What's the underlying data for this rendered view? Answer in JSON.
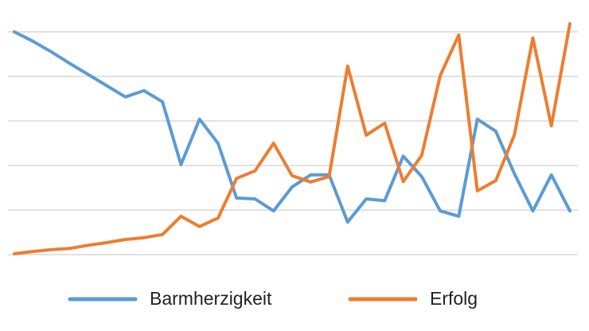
{
  "chart_data": {
    "type": "line",
    "categories": [
      null,
      null,
      null,
      null,
      null,
      null,
      null,
      null,
      null,
      null,
      null,
      null,
      null,
      null,
      null,
      null,
      null,
      null,
      null,
      null,
      null,
      null,
      null,
      null,
      null,
      null,
      null,
      null,
      null,
      null,
      null
    ],
    "series": [
      {
        "name": "Barmherzigkeit",
        "color": "#5b9bd5",
        "values": [
          5.0,
          4.79,
          4.55,
          4.29,
          4.04,
          3.79,
          3.54,
          3.68,
          3.43,
          2.02,
          3.04,
          2.5,
          1.27,
          1.25,
          0.98,
          1.52,
          1.79,
          1.79,
          0.73,
          1.25,
          1.21,
          2.21,
          1.75,
          0.98,
          0.86,
          3.04,
          2.77,
          1.82,
          0.98,
          1.79,
          0.98
        ]
      },
      {
        "name": "Erfolg",
        "color": "#ed7d31",
        "values": [
          0.02,
          0.07,
          0.11,
          0.14,
          0.21,
          0.27,
          0.34,
          0.38,
          0.45,
          0.86,
          0.63,
          0.82,
          1.71,
          1.88,
          2.5,
          1.77,
          1.63,
          1.75,
          4.23,
          2.68,
          2.95,
          1.64,
          2.23,
          4.02,
          4.93,
          1.43,
          1.66,
          2.68,
          4.86,
          2.89,
          5.18
        ]
      }
    ],
    "ylim": [
      0,
      5.3
    ],
    "yticks": [
      0,
      1,
      2,
      3,
      4,
      5
    ],
    "grid": true,
    "legend": "bottom"
  }
}
